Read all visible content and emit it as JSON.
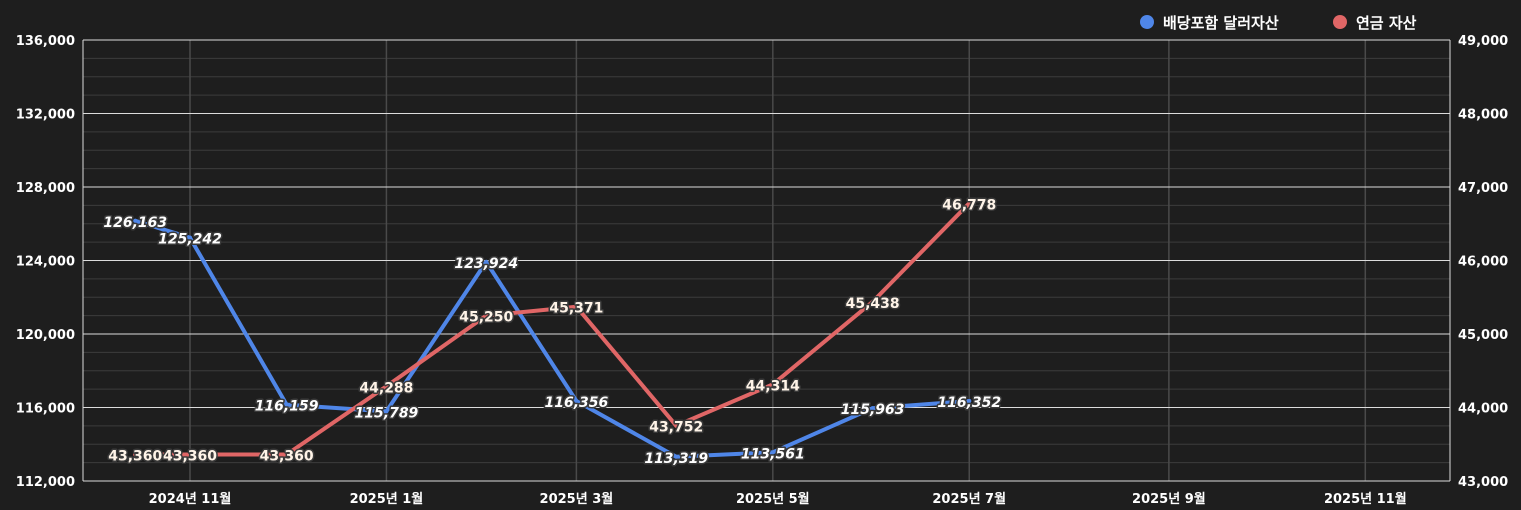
{
  "chart_data": {
    "type": "line",
    "x_labels": [
      "2024년 11월",
      "2025년 1월",
      "2025년 3월",
      "2025년 5월",
      "2025년 7월",
      "2025년 9월",
      "2025년 11월"
    ],
    "y_left": {
      "min": 112000,
      "max": 136000,
      "ticks": [
        "112,000",
        "116,000",
        "120,000",
        "124,000",
        "128,000",
        "132,000",
        "136,000"
      ]
    },
    "y_right": {
      "min": 43000,
      "max": 49000,
      "ticks": [
        "43,000",
        "44,000",
        "45,000",
        "46,000",
        "47,000",
        "48,000",
        "49,000"
      ]
    },
    "legend_position": "top-right",
    "series": [
      {
        "name": "배당포함 달러자산",
        "axis": "left",
        "color": "#4f86e8",
        "x": [
          "2024-10-15",
          "2024-11-01",
          "2024-12-01",
          "2025-01-01",
          "2025-02-01",
          "2025-03-01",
          "2025-04-01",
          "2025-05-01",
          "2025-06-01",
          "2025-07-01"
        ],
        "values": [
          126163,
          125242,
          116159,
          115789,
          123924,
          116356,
          113319,
          113561,
          115963,
          116352
        ],
        "labels": [
          "126,163",
          "125,242",
          "116,159",
          "115,789",
          "123,924",
          "116,356",
          "113,319",
          "113,561",
          "115,963",
          "116,352"
        ]
      },
      {
        "name": "연금 자산",
        "axis": "right",
        "color": "#e06666",
        "x": [
          "2024-10-15",
          "2024-11-01",
          "2024-12-01",
          "2025-01-01",
          "2025-02-01",
          "2025-03-01",
          "2025-04-01",
          "2025-05-01",
          "2025-06-01",
          "2025-07-01"
        ],
        "values": [
          43360,
          43360,
          43360,
          44288,
          45250,
          45371,
          43752,
          44314,
          45438,
          46778
        ],
        "labels": [
          "43,360",
          "43,360",
          "43,360",
          "44,288",
          "45,250",
          "45,371",
          "43,752",
          "44,314",
          "45,438",
          "46,778"
        ]
      }
    ],
    "grid": true
  }
}
